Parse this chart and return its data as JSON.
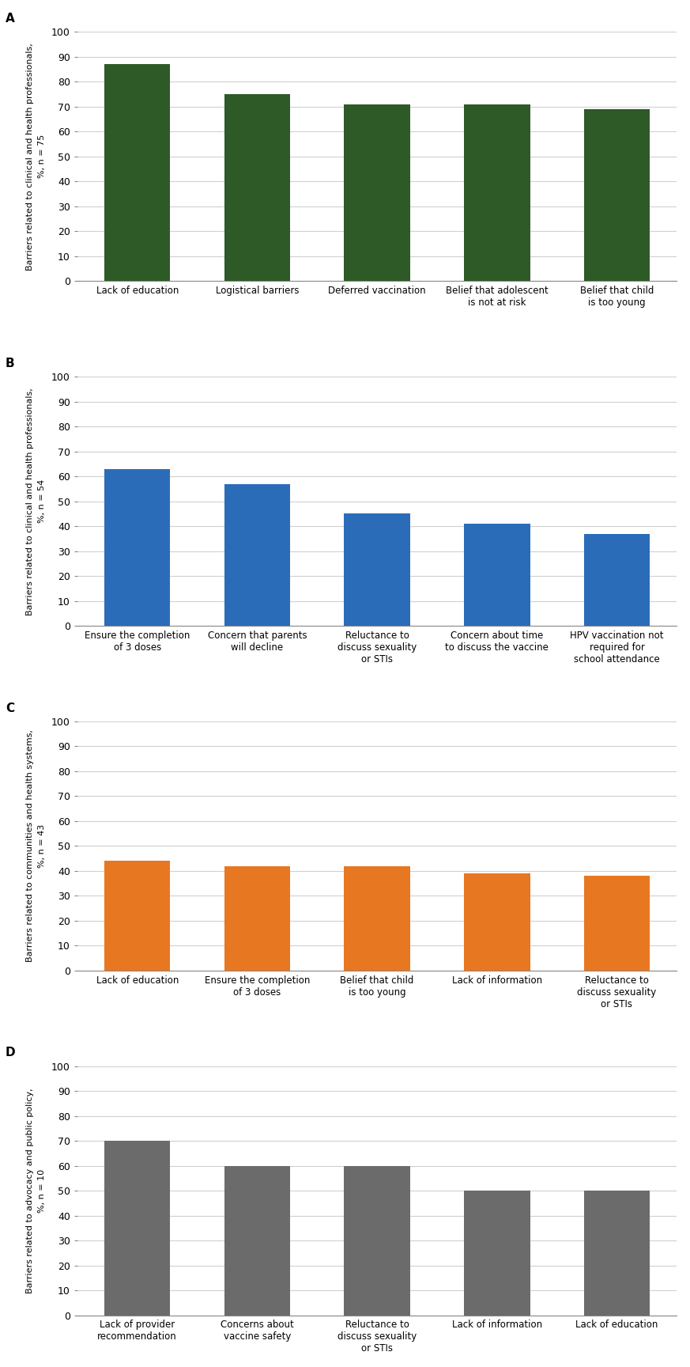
{
  "panels": [
    {
      "label": "A",
      "ylabel_main": "Barriers related to clinical and health professionals,",
      "ylabel_sub": "%, n = 75",
      "color": "#2d5a27",
      "categories": [
        "Lack of education",
        "Logistical barriers",
        "Deferred vaccination",
        "Belief that adolescent\nis not at risk",
        "Belief that child\nis too young"
      ],
      "values": [
        87,
        75,
        71,
        71,
        69
      ]
    },
    {
      "label": "B",
      "ylabel_main": "Barriers related to clinical and health professionals,",
      "ylabel_sub": "%, n = 54",
      "color": "#2b6cb8",
      "categories": [
        "Ensure the completion\nof 3 doses",
        "Concern that parents\nwill decline",
        "Reluctance to\ndiscuss sexuality\nor STIs",
        "Concern about time\nto discuss the vaccine",
        "HPV vaccination not\nrequired for\nschool attendance"
      ],
      "values": [
        63,
        57,
        45,
        41,
        37
      ]
    },
    {
      "label": "C",
      "ylabel_main": "Barriers related to communities and health systems,",
      "ylabel_sub": "%, n = 43",
      "color": "#e87722",
      "categories": [
        "Lack of education",
        "Ensure the completion\nof 3 doses",
        "Belief that child\nis too young",
        "Lack of information",
        "Reluctance to\ndiscuss sexuality\nor STIs"
      ],
      "values": [
        44,
        42,
        42,
        39,
        38
      ]
    },
    {
      "label": "D",
      "ylabel_main": "Barriers related to advocacy and public policy,",
      "ylabel_sub": "%, n = 10",
      "color": "#6b6b6b",
      "categories": [
        "Lack of provider\nrecommendation",
        "Concerns about\nvaccine safety",
        "Reluctance to\ndiscuss sexuality\nor STIs",
        "Lack of information",
        "Lack of education"
      ],
      "values": [
        70,
        60,
        60,
        50,
        50
      ]
    }
  ],
  "ylim": [
    0,
    100
  ],
  "yticks": [
    0,
    10,
    20,
    30,
    40,
    50,
    60,
    70,
    80,
    90,
    100
  ],
  "background_color": "#ffffff",
  "grid_color": "#d0d0d0",
  "tick_fontsize": 9,
  "ylabel_fontsize": 8.0,
  "panel_label_fontsize": 11,
  "xtick_fontsize": 8.5,
  "bar_width": 0.55
}
